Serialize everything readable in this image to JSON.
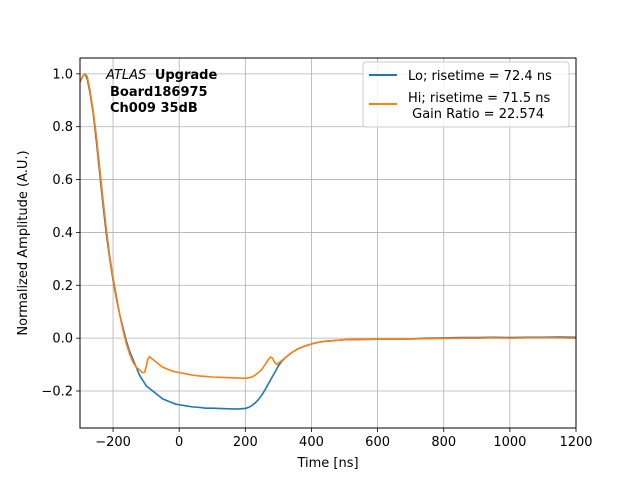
{
  "chart_data": {
    "type": "line",
    "xlabel": "Time [ns]",
    "ylabel": "Normalized Amplitude (A.U.)",
    "xlim": [
      -300,
      1200
    ],
    "ylim": [
      -0.34,
      1.06
    ],
    "xticks": [
      -200,
      0,
      200,
      400,
      600,
      800,
      1000,
      1200
    ],
    "yticks": [
      -0.2,
      0.0,
      0.2,
      0.4,
      0.6,
      0.8,
      1.0
    ],
    "xtick_labels": [
      "−200",
      "0",
      "200",
      "400",
      "600",
      "800",
      "1000",
      "1200"
    ],
    "ytick_labels": [
      "−0.2",
      "0.0",
      "0.2",
      "0.4",
      "0.6",
      "0.8",
      "1.0"
    ],
    "grid": true,
    "legend_position": "top-right",
    "annotation": {
      "italic": "ATLAS",
      "bold": "Upgrade",
      "line2": "Board186975",
      "line3": "Ch009 35dB"
    },
    "series": [
      {
        "name": "Lo; risetime = 72.4 ns",
        "color": "#1f77b4",
        "x": [
          -300,
          -292,
          -285,
          -278,
          -270,
          -260,
          -250,
          -240,
          -230,
          -220,
          -210,
          -200,
          -190,
          -180,
          -170,
          -160,
          -150,
          -140,
          -130,
          -120,
          -110,
          -100,
          -90,
          -80,
          -70,
          -60,
          -50,
          -40,
          -30,
          -20,
          -10,
          0,
          20,
          40,
          60,
          80,
          100,
          120,
          140,
          160,
          180,
          200,
          210,
          220,
          230,
          240,
          250,
          260,
          270,
          280,
          290,
          300,
          310,
          320,
          340,
          360,
          380,
          400,
          420,
          440,
          460,
          480,
          500,
          550,
          600,
          650,
          700,
          750,
          800,
          850,
          900,
          950,
          1000,
          1050,
          1100,
          1150,
          1200
        ],
        "y": [
          0.97,
          0.99,
          1.0,
          0.98,
          0.93,
          0.85,
          0.74,
          0.62,
          0.5,
          0.39,
          0.3,
          0.22,
          0.15,
          0.09,
          0.04,
          -0.01,
          -0.05,
          -0.08,
          -0.11,
          -0.14,
          -0.16,
          -0.18,
          -0.19,
          -0.2,
          -0.21,
          -0.22,
          -0.23,
          -0.235,
          -0.24,
          -0.245,
          -0.25,
          -0.252,
          -0.256,
          -0.26,
          -0.262,
          -0.265,
          -0.265,
          -0.266,
          -0.267,
          -0.268,
          -0.268,
          -0.266,
          -0.262,
          -0.255,
          -0.245,
          -0.232,
          -0.215,
          -0.195,
          -0.172,
          -0.15,
          -0.128,
          -0.105,
          -0.088,
          -0.075,
          -0.055,
          -0.04,
          -0.03,
          -0.022,
          -0.016,
          -0.012,
          -0.01,
          -0.008,
          -0.006,
          -0.005,
          -0.004,
          -0.004,
          -0.003,
          0.0,
          0.001,
          0.002,
          0.002,
          0.003,
          0.002,
          0.003,
          0.003,
          0.004,
          0.003
        ]
      },
      {
        "name": "Hi; risetime = 71.5 ns",
        "name_line2": " Gain Ratio = 22.574",
        "color": "#ff7f0e",
        "x": [
          -300,
          -292,
          -285,
          -278,
          -270,
          -260,
          -250,
          -240,
          -230,
          -220,
          -210,
          -200,
          -190,
          -180,
          -170,
          -160,
          -150,
          -140,
          -130,
          -120,
          -112,
          -105,
          -100,
          -95,
          -90,
          -85,
          -80,
          -75,
          -70,
          -60,
          -50,
          -40,
          -30,
          -20,
          -10,
          0,
          20,
          40,
          60,
          80,
          100,
          120,
          140,
          160,
          180,
          200,
          210,
          220,
          230,
          240,
          250,
          260,
          270,
          276,
          282,
          288,
          295,
          300,
          310,
          320,
          340,
          360,
          380,
          400,
          420,
          440,
          460,
          480,
          500,
          550,
          600,
          650,
          700,
          750,
          800,
          850,
          900,
          950,
          1000,
          1050,
          1100,
          1150,
          1200
        ],
        "y": [
          0.97,
          0.99,
          1.0,
          0.99,
          0.94,
          0.86,
          0.76,
          0.64,
          0.52,
          0.41,
          0.31,
          0.23,
          0.16,
          0.09,
          0.03,
          -0.02,
          -0.06,
          -0.09,
          -0.11,
          -0.12,
          -0.13,
          -0.13,
          -0.11,
          -0.08,
          -0.07,
          -0.075,
          -0.08,
          -0.085,
          -0.09,
          -0.1,
          -0.11,
          -0.115,
          -0.12,
          -0.125,
          -0.128,
          -0.13,
          -0.135,
          -0.14,
          -0.143,
          -0.145,
          -0.147,
          -0.148,
          -0.149,
          -0.15,
          -0.151,
          -0.152,
          -0.15,
          -0.147,
          -0.14,
          -0.13,
          -0.118,
          -0.1,
          -0.08,
          -0.072,
          -0.075,
          -0.09,
          -0.1,
          -0.095,
          -0.085,
          -0.075,
          -0.055,
          -0.04,
          -0.03,
          -0.022,
          -0.016,
          -0.012,
          -0.01,
          -0.008,
          -0.006,
          -0.005,
          -0.004,
          -0.004,
          -0.003,
          -0.002,
          -0.001,
          0.0,
          0.0,
          0.001,
          0.0,
          0.001,
          0.001,
          0.001,
          0.0
        ]
      }
    ]
  }
}
